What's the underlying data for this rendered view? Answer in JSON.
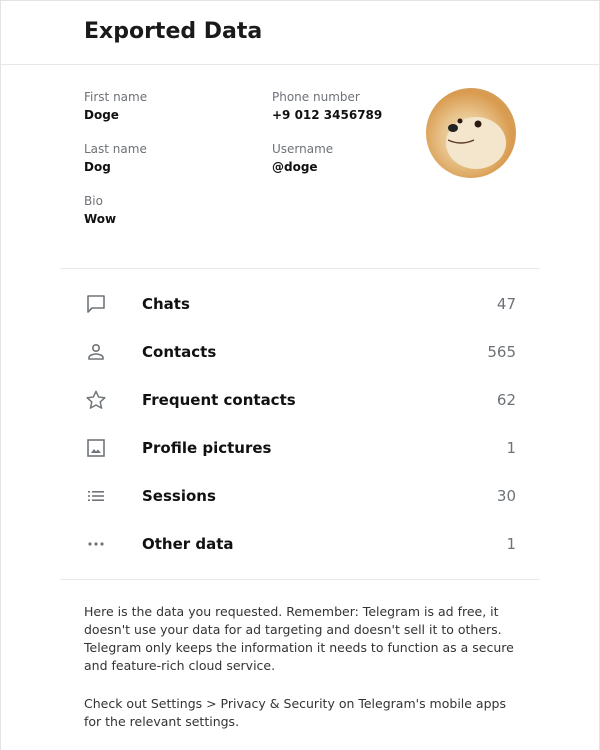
{
  "header": {
    "title": "Exported Data"
  },
  "profile": {
    "first_name_label": "First name",
    "first_name": "Doge",
    "last_name_label": "Last name",
    "last_name": "Dog",
    "bio_label": "Bio",
    "bio": "Wow",
    "phone_label": "Phone number",
    "phone": "+9 012 3456789",
    "username_label": "Username",
    "username": "@doge"
  },
  "sections": [
    {
      "icon": "chat-bubble-icon",
      "label": "Chats",
      "count": "47"
    },
    {
      "icon": "person-icon",
      "label": "Contacts",
      "count": "565"
    },
    {
      "icon": "star-icon",
      "label": "Frequent contacts",
      "count": "62"
    },
    {
      "icon": "image-icon",
      "label": "Profile pictures",
      "count": "1"
    },
    {
      "icon": "list-icon",
      "label": "Sessions",
      "count": "30"
    },
    {
      "icon": "more-dots-icon",
      "label": "Other data",
      "count": "1"
    }
  ],
  "footer": {
    "p1": "Here is the data you requested. Remember: Telegram is ad free, it doesn't use your data for ad targeting and doesn't sell it to others. Telegram only keeps the information it needs to function as a secure and feature-rich cloud service.",
    "p2": "Check out Settings > Privacy & Security on Telegram's mobile apps for the relevant settings."
  }
}
